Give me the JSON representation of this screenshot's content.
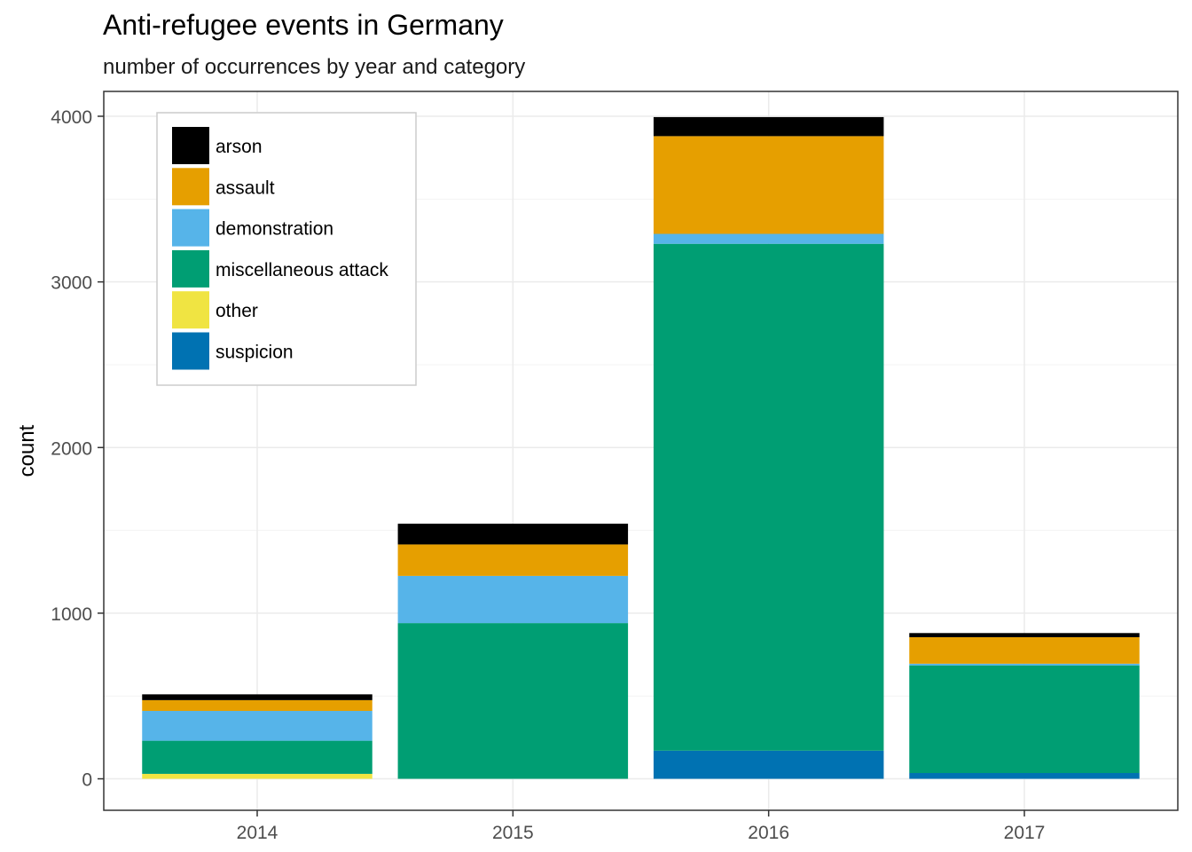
{
  "chart_data": {
    "type": "bar",
    "stacked": true,
    "title": "Anti-refugee events in Germany",
    "subtitle": "number of occurrences by year and category",
    "xlabel": "",
    "ylabel": "count",
    "categories": [
      "2014",
      "2015",
      "2016",
      "2017"
    ],
    "ylim": [
      -190,
      4150
    ],
    "yticks": [
      0,
      1000,
      2000,
      3000,
      4000
    ],
    "grid": true,
    "legend_position": "top-left",
    "series": [
      {
        "name": "suspicion",
        "color": "#0072B2",
        "values": [
          0,
          0,
          170,
          35
        ]
      },
      {
        "name": "other",
        "color": "#F0E442",
        "values": [
          30,
          0,
          0,
          0
        ]
      },
      {
        "name": "miscellaneous attack",
        "color": "#009E73",
        "values": [
          200,
          940,
          3060,
          650
        ]
      },
      {
        "name": "demonstration",
        "color": "#56B4E9",
        "values": [
          180,
          285,
          60,
          10
        ]
      },
      {
        "name": "assault",
        "color": "#E69F00",
        "values": [
          65,
          190,
          590,
          160
        ]
      },
      {
        "name": "arson",
        "color": "#000000",
        "values": [
          35,
          125,
          115,
          25
        ]
      }
    ],
    "legend_order": [
      "arson",
      "assault",
      "demonstration",
      "miscellaneous attack",
      "other",
      "suspicion"
    ]
  }
}
